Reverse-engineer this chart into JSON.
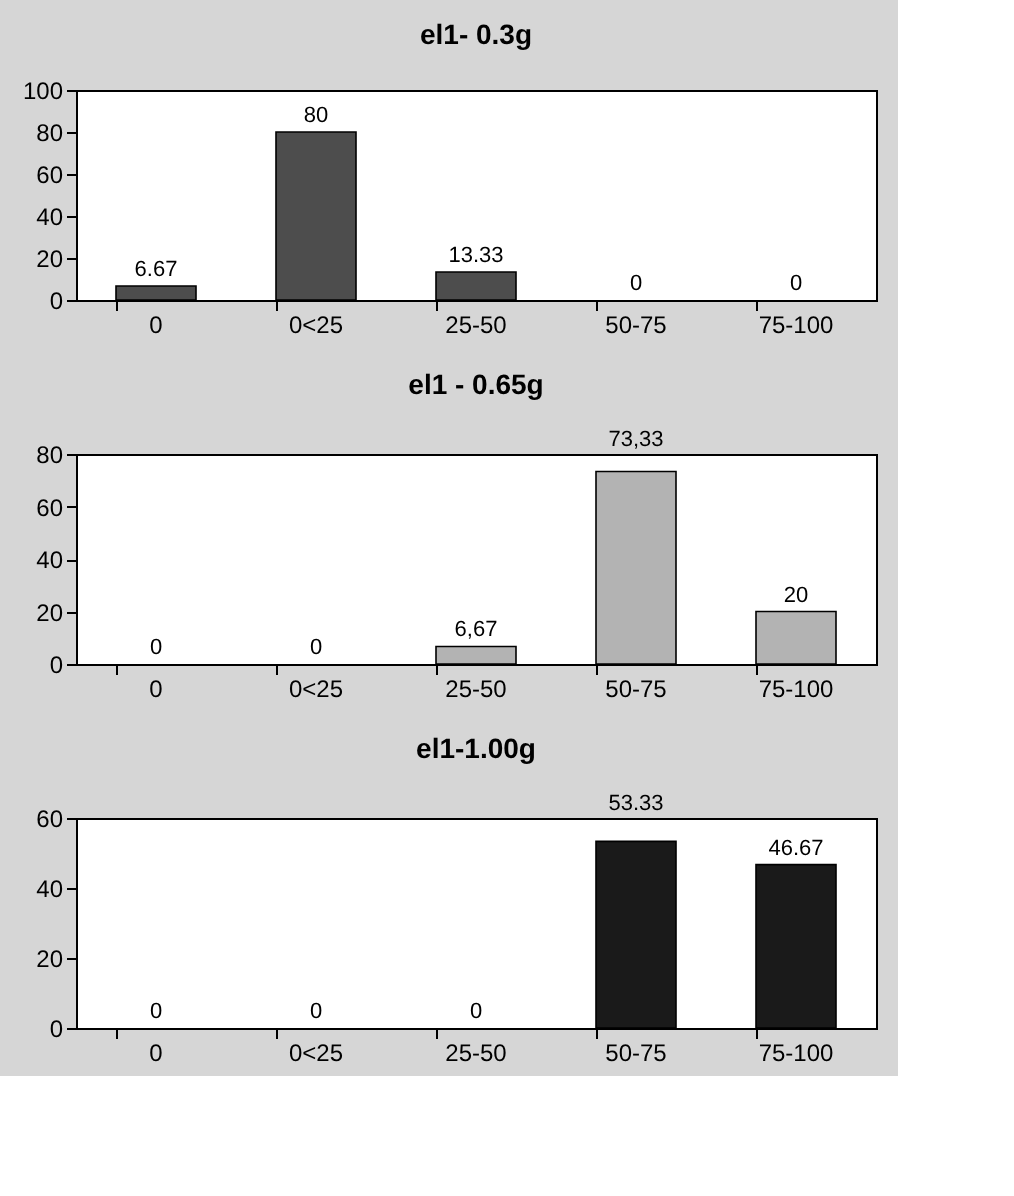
{
  "chart_data": [
    {
      "type": "bar",
      "title": "el1- 0.3g",
      "categories": [
        "0",
        "0<25",
        "25-50",
        "50-75",
        "75-100"
      ],
      "values": [
        6.67,
        80,
        13.33,
        0,
        0
      ],
      "color": "#4d4d4d",
      "ylim": [
        0,
        100
      ],
      "yticks": [
        0,
        20,
        40,
        60,
        80,
        100
      ],
      "grid": false,
      "data_labels": true
    },
    {
      "type": "bar",
      "title": "el1 - 0.65g",
      "categories": [
        "0",
        "0<25",
        "25-50",
        "50-75",
        "75-100"
      ],
      "values": [
        0,
        0,
        6.67,
        73.33,
        20
      ],
      "value_labels": [
        "0",
        "0",
        "6,67",
        "73,33",
        "20"
      ],
      "color": "#b3b3b3",
      "ylim": [
        0,
        80
      ],
      "yticks": [
        0,
        20,
        40,
        60,
        80
      ],
      "grid": false
    },
    {
      "type": "bar",
      "title": "el1-1.00g",
      "categories": [
        "0",
        "0<25",
        "25-50",
        "50-75",
        "75-100"
      ],
      "values": [
        0,
        0,
        0,
        53.33,
        46.67
      ],
      "color": "#1a1a1a",
      "ylim": [
        0,
        60
      ],
      "yticks": [
        0,
        20,
        40,
        60
      ],
      "grid": false,
      "data_labels": true
    }
  ]
}
